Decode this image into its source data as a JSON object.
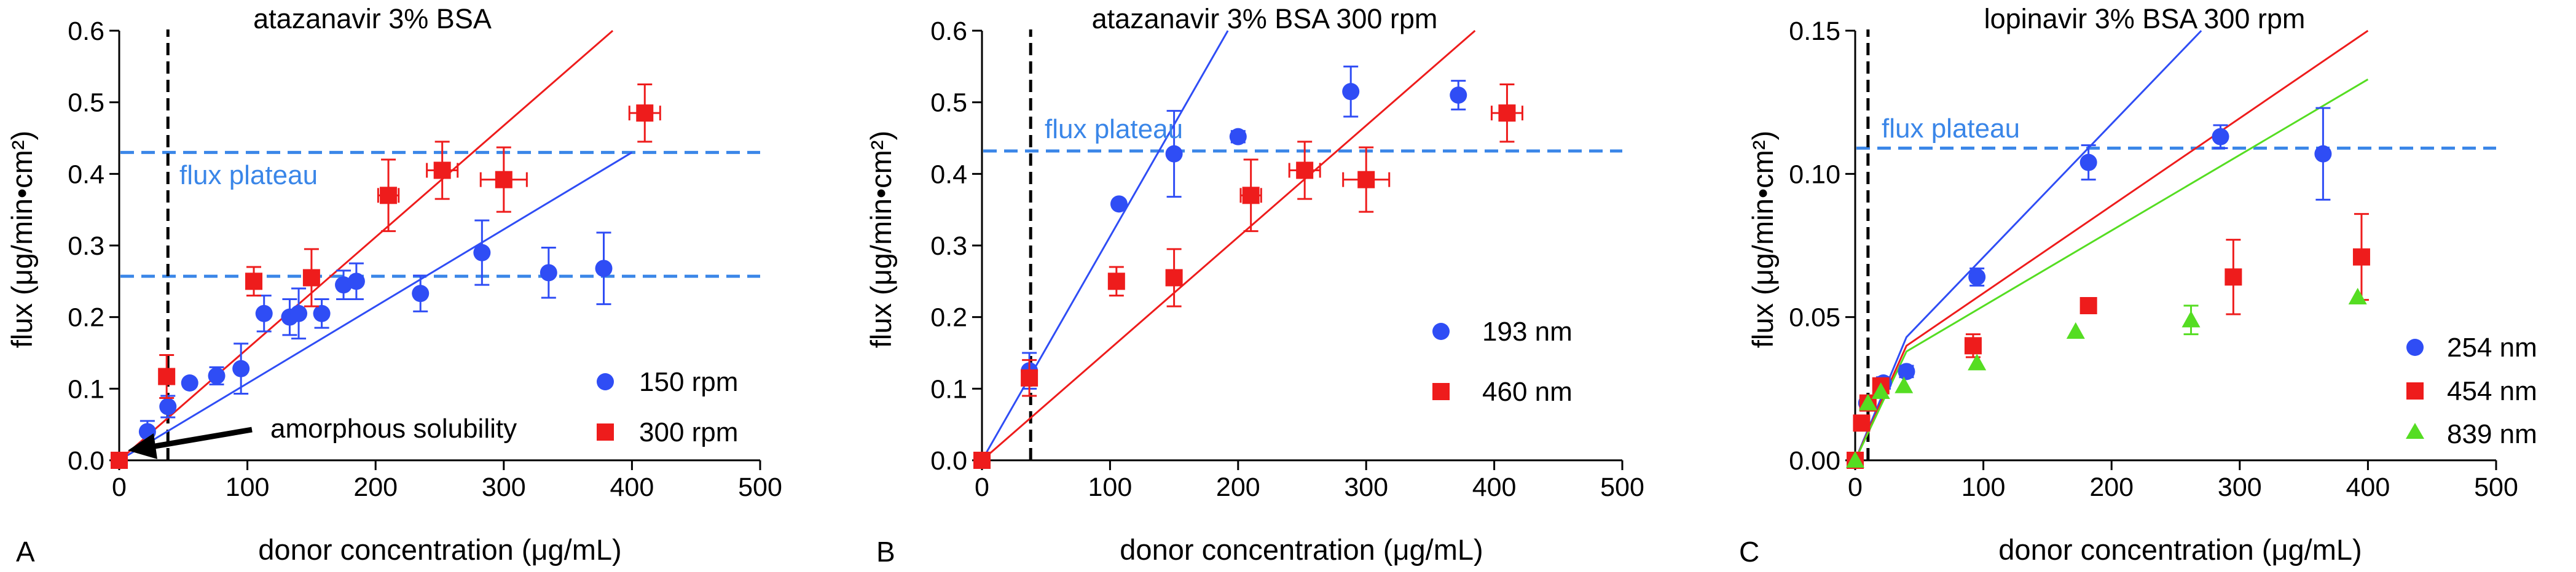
{
  "chart_data": [
    {
      "type": "scatter",
      "panel_label": "A",
      "title": "atazanavir 3% BSA",
      "xlabel": "donor concentration (μg/mL)",
      "ylabel": "flux (μg/min•cm²)",
      "xlim": [
        0,
        500
      ],
      "ylim": [
        0,
        0.6
      ],
      "xticks": [
        0,
        100,
        200,
        300,
        400,
        500
      ],
      "yticks": [
        0.0,
        0.1,
        0.2,
        0.3,
        0.4,
        0.5,
        0.6
      ],
      "ytick_labels": [
        "0.0",
        "0.1",
        "0.2",
        "0.3",
        "0.4",
        "0.5",
        "0.6"
      ],
      "series": [
        {
          "name": "150 rpm",
          "color": "#2f4df5",
          "marker": "circle",
          "points": [
            {
              "x": 0,
              "y": 0.0,
              "yerr": 0.0
            },
            {
              "x": 22,
              "y": 0.04,
              "yerr": 0.015
            },
            {
              "x": 38,
              "y": 0.075,
              "yerr": 0.015
            },
            {
              "x": 55,
              "y": 0.108,
              "yerr": 0.005
            },
            {
              "x": 76,
              "y": 0.118,
              "yerr": 0.012
            },
            {
              "x": 95,
              "y": 0.128,
              "yerr": 0.035
            },
            {
              "x": 113,
              "y": 0.205,
              "yerr": 0.025
            },
            {
              "x": 133,
              "y": 0.2,
              "yerr": 0.025
            },
            {
              "x": 140,
              "y": 0.205,
              "yerr": 0.035
            },
            {
              "x": 158,
              "y": 0.205,
              "yerr": 0.02
            },
            {
              "x": 175,
              "y": 0.245,
              "yerr": 0.02
            },
            {
              "x": 185,
              "y": 0.25,
              "yerr": 0.025
            },
            {
              "x": 235,
              "y": 0.233,
              "yerr": 0.025
            },
            {
              "x": 283,
              "y": 0.29,
              "yerr": 0.045
            },
            {
              "x": 335,
              "y": 0.262,
              "yerr": 0.035
            },
            {
              "x": 378,
              "y": 0.268,
              "yerr": 0.05
            }
          ]
        },
        {
          "name": "300 rpm",
          "color": "#ee1c1c",
          "marker": "square",
          "points": [
            {
              "x": 0,
              "y": 0.0,
              "xerr": 0,
              "yerr": 0.0
            },
            {
              "x": 37,
              "y": 0.117,
              "xerr": 0,
              "yerr": 0.03
            },
            {
              "x": 105,
              "y": 0.25,
              "xerr": 0,
              "yerr": 0.02
            },
            {
              "x": 150,
              "y": 0.255,
              "xerr": 0,
              "yerr": 0.04
            },
            {
              "x": 210,
              "y": 0.37,
              "xerr": 8,
              "yerr": 0.05
            },
            {
              "x": 252,
              "y": 0.405,
              "xerr": 12,
              "yerr": 0.04
            },
            {
              "x": 300,
              "y": 0.392,
              "xerr": 18,
              "yerr": 0.045
            },
            {
              "x": 410,
              "y": 0.485,
              "xerr": 12,
              "yerr": 0.04
            }
          ]
        }
      ],
      "fit_lines": [
        {
          "color": "#2f4df5",
          "x1": 0,
          "y1": 0.0,
          "x2": 400,
          "y2": 0.43
        },
        {
          "color": "#ee1c1c",
          "x1": 0,
          "y1": 0.0,
          "x2": 385,
          "y2": 0.6
        }
      ],
      "hlines": [
        {
          "y": 0.43,
          "color": "#3a86e8",
          "label": "flux plateau"
        },
        {
          "y": 0.257,
          "color": "#3a86e8"
        }
      ],
      "vline": {
        "x": 38,
        "color": "#000000"
      },
      "annotation": "amorphous solubility",
      "legend_position": "bottom-right"
    },
    {
      "type": "scatter",
      "panel_label": "B",
      "title": "atazanavir 3% BSA 300 rpm",
      "xlabel": "donor concentration (μg/mL)",
      "ylabel": "flux (μg/min•cm²)",
      "xlim": [
        0,
        500
      ],
      "ylim": [
        0,
        0.6
      ],
      "xticks": [
        0,
        100,
        200,
        300,
        400,
        500
      ],
      "yticks": [
        0.0,
        0.1,
        0.2,
        0.3,
        0.4,
        0.5,
        0.6
      ],
      "ytick_labels": [
        "0.0",
        "0.1",
        "0.2",
        "0.3",
        "0.4",
        "0.5",
        "0.6"
      ],
      "series": [
        {
          "name": "193 nm",
          "color": "#2f4df5",
          "marker": "circle",
          "points": [
            {
              "x": 0,
              "y": 0.0,
              "yerr": 0.0
            },
            {
              "x": 37,
              "y": 0.125,
              "yerr": 0.025
            },
            {
              "x": 107,
              "y": 0.358,
              "yerr": 0.0
            },
            {
              "x": 150,
              "y": 0.428,
              "yerr": 0.06
            },
            {
              "x": 200,
              "y": 0.452,
              "yerr": 0.008
            },
            {
              "x": 288,
              "y": 0.515,
              "yerr": 0.035
            },
            {
              "x": 372,
              "y": 0.51,
              "yerr": 0.02
            }
          ]
        },
        {
          "name": "460 nm",
          "color": "#ee1c1c",
          "marker": "square",
          "points": [
            {
              "x": 0,
              "y": 0.0,
              "xerr": 0,
              "yerr": 0.0
            },
            {
              "x": 37,
              "y": 0.115,
              "xerr": 0,
              "yerr": 0.025
            },
            {
              "x": 105,
              "y": 0.25,
              "xerr": 0,
              "yerr": 0.02
            },
            {
              "x": 150,
              "y": 0.255,
              "xerr": 0,
              "yerr": 0.04
            },
            {
              "x": 210,
              "y": 0.37,
              "xerr": 8,
              "yerr": 0.05
            },
            {
              "x": 252,
              "y": 0.405,
              "xerr": 12,
              "yerr": 0.04
            },
            {
              "x": 300,
              "y": 0.392,
              "xerr": 18,
              "yerr": 0.045
            },
            {
              "x": 410,
              "y": 0.485,
              "xerr": 12,
              "yerr": 0.04
            }
          ]
        }
      ],
      "fit_lines": [
        {
          "color": "#2f4df5",
          "x1": 0,
          "y1": 0.0,
          "x2": 192,
          "y2": 0.6
        },
        {
          "color": "#ee1c1c",
          "x1": 0,
          "y1": 0.0,
          "x2": 385,
          "y2": 0.6
        }
      ],
      "hlines": [
        {
          "y": 0.432,
          "color": "#3a86e8",
          "label": "flux plateau"
        }
      ],
      "vline": {
        "x": 38,
        "color": "#000000"
      },
      "legend_position": "middle-right"
    },
    {
      "type": "scatter",
      "panel_label": "C",
      "title": "lopinavir 3% BSA 300 rpm",
      "xlabel": "donor concentration (μg/mL)",
      "ylabel": "flux (μg/min•cm²)",
      "xlim": [
        0,
        500
      ],
      "ylim": [
        0,
        0.15
      ],
      "xticks": [
        0,
        100,
        200,
        300,
        400,
        500
      ],
      "yticks": [
        0.0,
        0.05,
        0.1,
        0.15
      ],
      "ytick_labels": [
        "0.00",
        "0.05",
        "0.10",
        "0.15"
      ],
      "series": [
        {
          "name": "254 nm",
          "color": "#2f4df5",
          "marker": "circle",
          "points": [
            {
              "x": 0,
              "y": 0.0,
              "yerr": 0.0
            },
            {
              "x": 9,
              "y": 0.02,
              "yerr": 0.002
            },
            {
              "x": 22,
              "y": 0.027,
              "yerr": 0.002
            },
            {
              "x": 40,
              "y": 0.031,
              "yerr": 0.002
            },
            {
              "x": 95,
              "y": 0.064,
              "yerr": 0.003
            },
            {
              "x": 182,
              "y": 0.104,
              "yerr": 0.006
            },
            {
              "x": 285,
              "y": 0.113,
              "yerr": 0.004
            },
            {
              "x": 365,
              "y": 0.107,
              "yerr": 0.016
            }
          ]
        },
        {
          "name": "454 nm",
          "color": "#ee1c1c",
          "marker": "square",
          "points": [
            {
              "x": 0,
              "y": 0.0,
              "xerr": 0,
              "yerr": 0.0
            },
            {
              "x": 5,
              "y": 0.013,
              "xerr": 0,
              "yerr": 0.0
            },
            {
              "x": 10,
              "y": 0.02,
              "xerr": 0,
              "yerr": 0.0
            },
            {
              "x": 20,
              "y": 0.026,
              "xerr": 0,
              "yerr": 0.0
            },
            {
              "x": 92,
              "y": 0.04,
              "xerr": 0,
              "yerr": 0.004
            },
            {
              "x": 182,
              "y": 0.054,
              "xerr": 5,
              "yerr": 0.002
            },
            {
              "x": 295,
              "y": 0.064,
              "xerr": 0,
              "yerr": 0.013
            },
            {
              "x": 395,
              "y": 0.071,
              "xerr": 0,
              "yerr": 0.015
            }
          ]
        },
        {
          "name": "839 nm",
          "color": "#55dd22",
          "marker": "triangle",
          "points": [
            {
              "x": 0,
              "y": 0.0,
              "yerr": 0.0
            },
            {
              "x": 10,
              "y": 0.02,
              "yerr": 0.0
            },
            {
              "x": 20,
              "y": 0.024,
              "yerr": 0.0
            },
            {
              "x": 38,
              "y": 0.026,
              "yerr": 0.0
            },
            {
              "x": 95,
              "y": 0.034,
              "yerr": 0.0
            },
            {
              "x": 172,
              "y": 0.045,
              "yerr": 0.0
            },
            {
              "x": 262,
              "y": 0.049,
              "yerr": 0.005
            },
            {
              "x": 392,
              "y": 0.057,
              "yerr": 0.0
            }
          ]
        }
      ],
      "fit_lines": [
        {
          "color": "#2f4df5",
          "points": [
            [
              0,
              0.0
            ],
            [
              40,
              0.043
            ],
            [
              270,
              0.15
            ]
          ]
        },
        {
          "color": "#ee1c1c",
          "points": [
            [
              0,
              0.0
            ],
            [
              40,
              0.04
            ],
            [
              400,
              0.15
            ]
          ]
        },
        {
          "color": "#55dd22",
          "points": [
            [
              0,
              0.0
            ],
            [
              40,
              0.038
            ],
            [
              400,
              0.133
            ]
          ]
        }
      ],
      "hlines": [
        {
          "y": 0.109,
          "color": "#3a86e8",
          "label": "flux plateau"
        }
      ],
      "vline": {
        "x": 10,
        "color": "#000000"
      },
      "legend_position": "bottom-right"
    }
  ]
}
